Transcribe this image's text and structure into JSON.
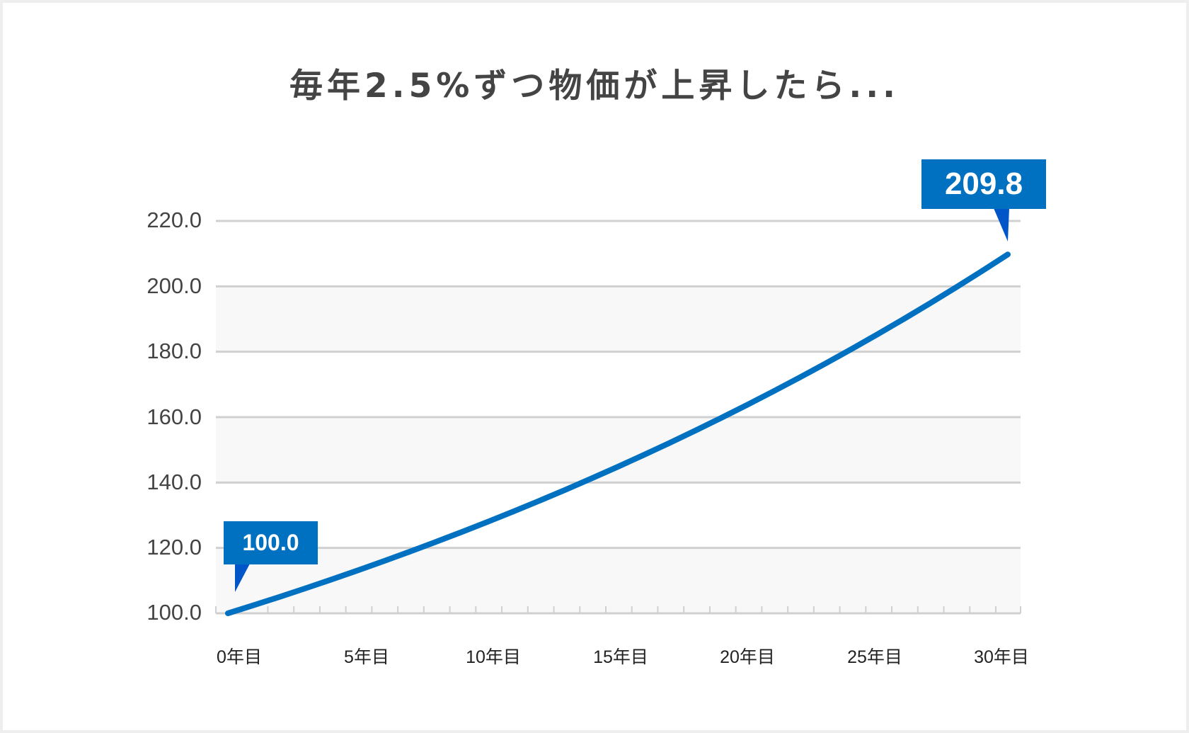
{
  "title": "毎年2.5%ずつ物価が上昇したら...",
  "colors": {
    "line": "#0070c0",
    "callout": "#0070c0",
    "callout_pointer": "#0055c8",
    "grid": "#d0d0d0",
    "band": "#f8f8f8",
    "title": "#444444"
  },
  "callouts": {
    "start": "100.0",
    "end": "209.8"
  },
  "y_axis": {
    "ticks": [
      "220.0",
      "200.0",
      "180.0",
      "160.0",
      "140.0",
      "120.0",
      "100.0"
    ]
  },
  "x_axis": {
    "ticks": [
      "0年目",
      "5年目",
      "10年目",
      "15年目",
      "20年目",
      "25年目",
      "30年目"
    ]
  },
  "chart_data": {
    "type": "line",
    "title": "毎年2.5%ずつ物価が上昇したら...",
    "xlabel": "",
    "ylabel": "",
    "x": [
      0,
      1,
      2,
      3,
      4,
      5,
      6,
      7,
      8,
      9,
      10,
      11,
      12,
      13,
      14,
      15,
      16,
      17,
      18,
      19,
      20,
      21,
      22,
      23,
      24,
      25,
      26,
      27,
      28,
      29,
      30
    ],
    "x_tick_labels": [
      "0年目",
      "5年目",
      "10年目",
      "15年目",
      "20年目",
      "25年目",
      "30年目"
    ],
    "series": [
      {
        "name": "物価",
        "values": [
          100.0,
          102.5,
          105.06,
          107.69,
          110.38,
          113.14,
          115.97,
          118.87,
          121.84,
          124.89,
          128.01,
          131.21,
          134.49,
          137.85,
          141.3,
          144.83,
          148.45,
          152.16,
          155.97,
          159.87,
          163.86,
          167.96,
          172.16,
          176.46,
          180.87,
          185.39,
          190.03,
          194.78,
          199.65,
          204.64,
          209.76
        ]
      }
    ],
    "annotations": [
      {
        "x": 0,
        "label": "100.0"
      },
      {
        "x": 30,
        "label": "209.8"
      }
    ],
    "ylim": [
      100,
      220
    ],
    "y_ticks": [
      100,
      120,
      140,
      160,
      180,
      200,
      220
    ],
    "grid": true,
    "legend": "none"
  }
}
